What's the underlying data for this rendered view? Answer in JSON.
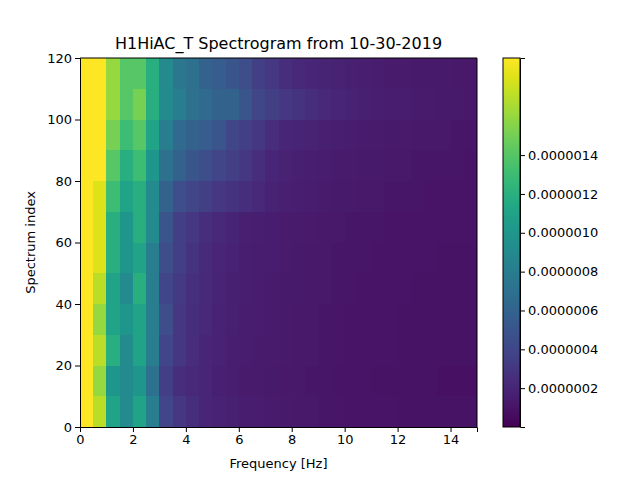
{
  "chart_data": {
    "type": "heatmap",
    "title": "H1HiAC_T Spectrogram from 10-30-2019",
    "x_label": "Frequency [Hz]",
    "y_label": "Spectrum index",
    "xlim": [
      0,
      15
    ],
    "ylim": [
      0,
      120
    ],
    "xticks": [
      0,
      2,
      4,
      6,
      8,
      10,
      12,
      14
    ],
    "yticks": [
      0,
      20,
      40,
      60,
      80,
      100,
      120
    ],
    "x_bins": [
      0,
      0.5,
      1,
      1.5,
      2,
      2.5,
      3,
      3.5,
      4,
      4.5,
      5,
      5.5,
      6,
      6.5,
      7,
      7.5,
      8,
      8.5,
      9,
      9.5,
      10,
      10.5,
      11,
      11.5,
      12,
      12.5,
      13,
      13.5,
      14,
      14.5,
      15
    ],
    "y_bins": [
      0,
      10,
      20,
      30,
      40,
      50,
      60,
      70,
      80,
      90,
      100,
      110,
      120
    ],
    "z": [
      [
        1.9e-06,
        1.7e-06,
        1.1e-06,
        9e-07,
        1.1e-06,
        8e-07,
        4e-07,
        3e-07,
        2.5e-07,
        2e-07,
        1.8e-07,
        1.7e-07,
        1.5e-07,
        1.5e-07,
        1.4e-07,
        1.3e-07,
        1.2e-07,
        1.2e-07,
        1.1e-07,
        1.1e-07,
        1e-07,
        1e-07,
        1e-07,
        1e-07,
        9e-08,
        9e-08,
        9e-08,
        9e-08,
        9e-08,
        9e-08
      ],
      [
        1.9e-06,
        1.6e-06,
        1e-06,
        9e-07,
        1e-06,
        7e-07,
        3.5e-07,
        2.5e-07,
        2.2e-07,
        2e-07,
        1.7e-07,
        1.6e-07,
        1.4e-07,
        1.4e-07,
        1.3e-07,
        1.2e-07,
        1.2e-07,
        1.1e-07,
        1.1e-07,
        1e-07,
        1e-07,
        1e-07,
        9e-08,
        9e-08,
        9e-08,
        9e-08,
        9e-08,
        8e-08,
        8e-08,
        8e-08
      ],
      [
        1.9e-06,
        1.7e-06,
        1.2e-06,
        9e-07,
        1.1e-06,
        8e-07,
        4e-07,
        3e-07,
        2.4e-07,
        2e-07,
        1.8e-07,
        1.6e-07,
        1.5e-07,
        1.4e-07,
        1.4e-07,
        1.3e-07,
        1.2e-07,
        1.2e-07,
        1.1e-07,
        1.1e-07,
        1e-07,
        1e-07,
        1e-07,
        1e-07,
        9e-08,
        9e-08,
        9e-08,
        9e-08,
        9e-08,
        9e-08
      ],
      [
        1.9e-06,
        1.6e-06,
        1.1e-06,
        1e-06,
        1.1e-06,
        8e-07,
        4.5e-07,
        3e-07,
        2.5e-07,
        2.1e-07,
        1.8e-07,
        1.7e-07,
        1.5e-07,
        1.5e-07,
        1.4e-07,
        1.3e-07,
        1.2e-07,
        1.2e-07,
        1.1e-07,
        1.1e-07,
        1e-07,
        1e-07,
        1e-07,
        1e-07,
        9e-08,
        9e-08,
        9e-08,
        9e-08,
        9e-08,
        9e-08
      ],
      [
        1.9e-06,
        1.7e-06,
        1.1e-06,
        9e-07,
        1.2e-06,
        8e-07,
        4e-07,
        3.2e-07,
        2.6e-07,
        2.2e-07,
        1.9e-07,
        1.7e-07,
        1.6e-07,
        1.5e-07,
        1.4e-07,
        1.3e-07,
        1.3e-07,
        1.2e-07,
        1.2e-07,
        1.1e-07,
        1.1e-07,
        1e-07,
        1e-07,
        1e-07,
        1e-07,
        9e-08,
        9e-08,
        9e-08,
        9e-08,
        9e-08
      ],
      [
        1.9e-06,
        1.8e-06,
        1.2e-06,
        1e-06,
        1.1e-06,
        8e-07,
        4.5e-07,
        3.5e-07,
        2.8e-07,
        2.3e-07,
        2e-07,
        1.8e-07,
        1.6e-07,
        1.5e-07,
        1.5e-07,
        1.4e-07,
        1.3e-07,
        1.2e-07,
        1.2e-07,
        1.1e-07,
        1.1e-07,
        1.1e-07,
        1e-07,
        1e-07,
        1e-07,
        1e-07,
        1e-07,
        9e-08,
        9e-08,
        9e-08
      ],
      [
        1.9e-06,
        1.8e-06,
        1.2e-06,
        1e-06,
        1.2e-06,
        9e-07,
        5e-07,
        3.5e-07,
        3e-07,
        2.5e-07,
        2.2e-07,
        1.9e-07,
        1.7e-07,
        1.6e-07,
        1.5e-07,
        1.4e-07,
        1.4e-07,
        1.3e-07,
        1.2e-07,
        1.2e-07,
        1.1e-07,
        1.1e-07,
        1.1e-07,
        1e-07,
        1e-07,
        1e-07,
        1e-07,
        1e-07,
        1e-07,
        1e-07
      ],
      [
        1.9e-06,
        1.8e-06,
        1.3e-06,
        1.1e-06,
        1.2e-06,
        9e-07,
        6e-07,
        4.5e-07,
        4e-07,
        3.5e-07,
        3e-07,
        2.8e-07,
        2.5e-07,
        2.2e-07,
        1.8e-07,
        1.7e-07,
        1.6e-07,
        1.5e-07,
        1.4e-07,
        1.3e-07,
        1.3e-07,
        1.2e-07,
        1.2e-07,
        1.1e-07,
        1.1e-07,
        1.1e-07,
        1e-07,
        1e-07,
        1e-07,
        1e-07
      ],
      [
        1.9e-06,
        1.9e-06,
        1.4e-06,
        1.2e-06,
        1.3e-06,
        1e-06,
        7e-07,
        6e-07,
        5e-07,
        4.5e-07,
        4e-07,
        3.5e-07,
        3e-07,
        2.5e-07,
        2e-07,
        1.8e-07,
        1.7e-07,
        1.6e-07,
        1.5e-07,
        1.4e-07,
        1.4e-07,
        1.3e-07,
        1.3e-07,
        1.2e-07,
        1.2e-07,
        1.1e-07,
        1.1e-07,
        1.1e-07,
        1.1e-07,
        1e-07
      ],
      [
        1.9e-06,
        1.9e-06,
        1.5e-06,
        1.3e-06,
        1.4e-06,
        1.1e-06,
        8e-07,
        6.5e-07,
        6e-07,
        5.5e-07,
        5e-07,
        4e-07,
        3.5e-07,
        3e-07,
        2.4e-07,
        2e-07,
        1.9e-07,
        1.8e-07,
        1.7e-07,
        1.6e-07,
        1.5e-07,
        1.4e-07,
        1.4e-07,
        1.3e-07,
        1.3e-07,
        1.2e-07,
        1.2e-07,
        1.2e-07,
        1.1e-07,
        1.1e-07
      ],
      [
        1.9e-06,
        1.9e-06,
        1.6e-06,
        1.4e-06,
        1.5e-06,
        1.2e-06,
        9e-07,
        8e-07,
        7e-07,
        6.5e-07,
        6e-07,
        6e-07,
        5e-07,
        4e-07,
        3.5e-07,
        3e-07,
        2.8e-07,
        2.5e-07,
        2.2e-07,
        2e-07,
        1.8e-07,
        1.7e-07,
        1.6e-07,
        1.5e-07,
        1.5e-07,
        1.4e-07,
        1.4e-07,
        1.3e-07,
        1.3e-07,
        1.2e-07
      ],
      [
        1.9e-06,
        1.9e-06,
        1.6e-06,
        1.4e-06,
        1.4e-06,
        1.2e-06,
        9e-07,
        7.5e-07,
        7e-07,
        6e-07,
        5.5e-07,
        5e-07,
        4.5e-07,
        3.5e-07,
        3e-07,
        2.5e-07,
        2.2e-07,
        2e-07,
        1.9e-07,
        1.8e-07,
        1.7e-07,
        1.6e-07,
        1.5e-07,
        1.4e-07,
        1.4e-07,
        1.3e-07,
        1.3e-07,
        1.3e-07,
        1.2e-07,
        1.2e-07
      ]
    ],
    "colorbar": {
      "range": [
        0,
        1.9e-06
      ],
      "ticks": [
        {
          "value": 2e-07,
          "label": "0.0000002"
        },
        {
          "value": 4e-07,
          "label": "0.0000004"
        },
        {
          "value": 6e-07,
          "label": "0.0000006"
        },
        {
          "value": 8e-07,
          "label": "0.0000008"
        },
        {
          "value": 1e-06,
          "label": "0.0000010"
        },
        {
          "value": 1.2e-06,
          "label": "0.0000012"
        },
        {
          "value": 1.4e-06,
          "label": "0.0000014"
        }
      ]
    }
  }
}
